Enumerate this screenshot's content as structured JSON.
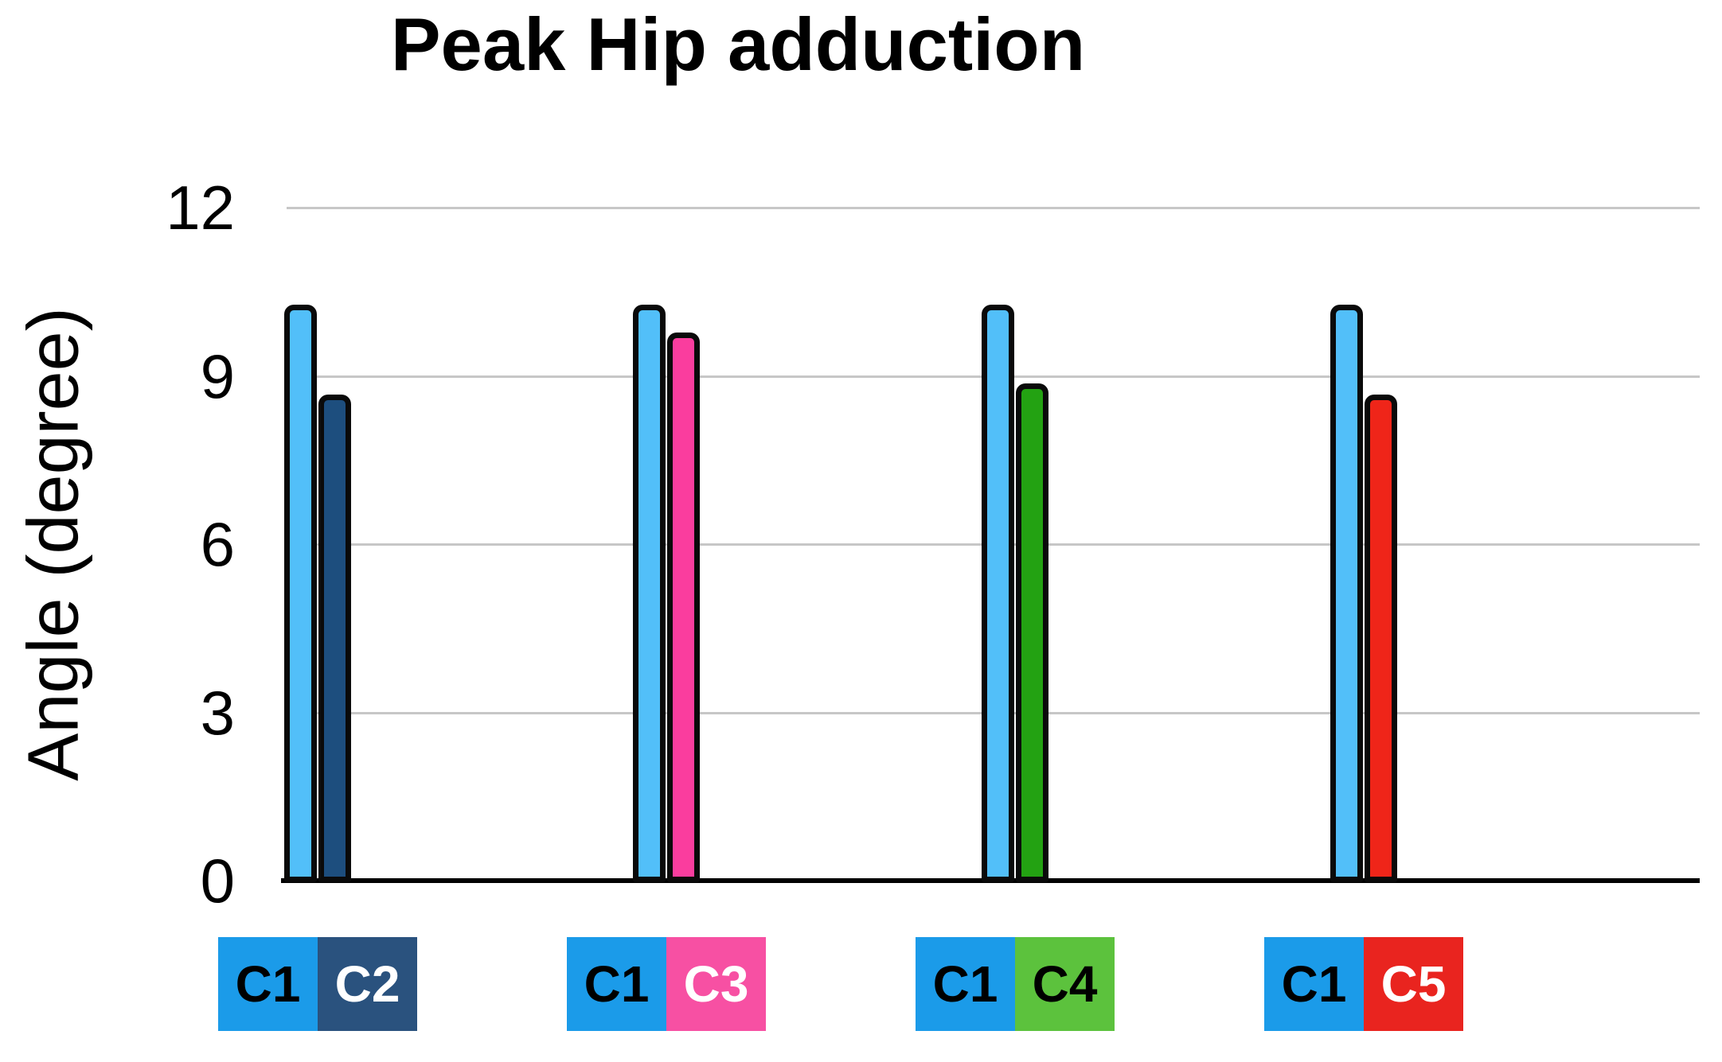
{
  "chart_data": {
    "type": "bar",
    "title": "Peak Hip adduction",
    "ylabel": "Angle (degree)",
    "ylim": [
      0,
      12
    ],
    "yticks": [
      0,
      3,
      6,
      9,
      12
    ],
    "grid": true,
    "legend_position": "below-x-axis",
    "groups": [
      {
        "name": "C1 vs C2",
        "bars": [
          {
            "label": "C1",
            "value": 10.3
          },
          {
            "label": "C2",
            "value": 8.7
          }
        ]
      },
      {
        "name": "C1 vs C3",
        "bars": [
          {
            "label": "C1",
            "value": 10.3
          },
          {
            "label": "C3",
            "value": 9.8
          }
        ]
      },
      {
        "name": "C1 vs C4",
        "bars": [
          {
            "label": "C1",
            "value": 10.3
          },
          {
            "label": "C4",
            "value": 8.9
          }
        ]
      },
      {
        "name": "C1 vs C5",
        "bars": [
          {
            "label": "C1",
            "value": 10.3
          },
          {
            "label": "C5",
            "value": 8.7
          }
        ]
      }
    ],
    "conditions": {
      "C1": {
        "bar_fill": "#52BFF9",
        "legend_fill": "#1B9BE9",
        "label_color": "#000000"
      },
      "C2": {
        "bar_fill": "#1D4E7E",
        "legend_fill": "#2A527E",
        "label_color": "#FFFFFF"
      },
      "C3": {
        "bar_fill": "#FA3D9E",
        "legend_fill": "#F750A3",
        "label_color": "#FFFFFF"
      },
      "C4": {
        "bar_fill": "#23A212",
        "legend_fill": "#5CC23D",
        "label_color": "#000000"
      },
      "C5": {
        "bar_fill": "#EF2519",
        "legend_fill": "#E9241F",
        "label_color": "#FFFFFF"
      }
    },
    "gridline_color": "#C7C7C7",
    "axis_color": "#000000",
    "bar_outline_color": "#0A0A0A",
    "background_color": "#FFFFFF"
  }
}
